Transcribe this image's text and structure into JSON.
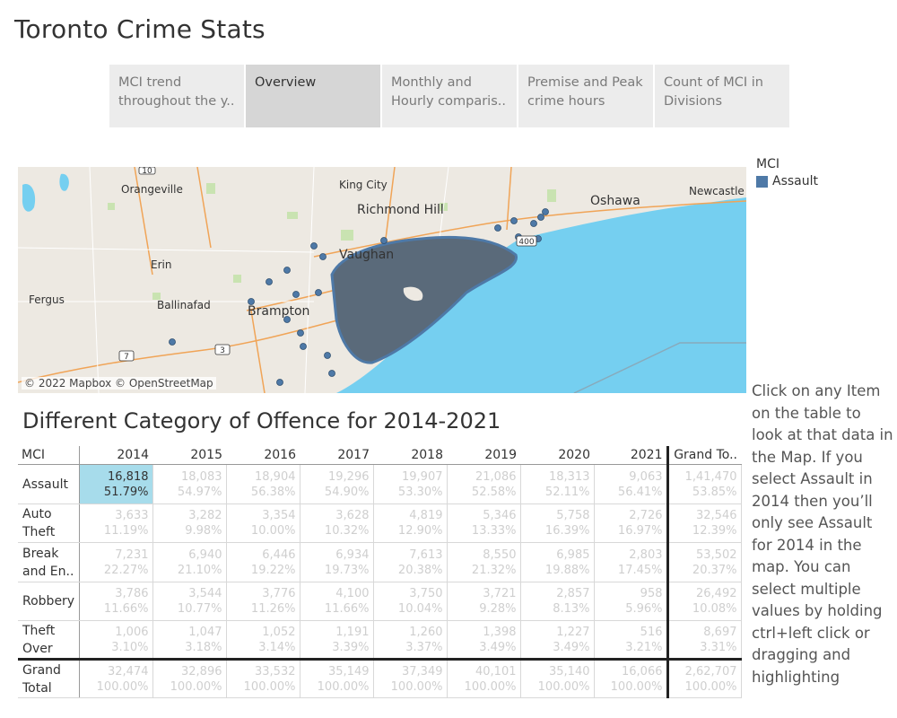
{
  "page": {
    "title": "Toronto Crime Stats"
  },
  "tabs": [
    {
      "label": "MCI trend throughout the y..",
      "active": false
    },
    {
      "label": "Overview",
      "active": true
    },
    {
      "label": "Monthly and Hourly comparis..",
      "active": false
    },
    {
      "label": "Premise and Peak crime hours",
      "active": false
    },
    {
      "label": "Count of MCI in Divisions",
      "active": false
    }
  ],
  "map": {
    "credit": "© 2022 Mapbox © OpenStreetMap",
    "places": [
      "Orangeville",
      "King City",
      "Richmond Hill",
      "Oshawa",
      "Newcastle",
      "Vaughan",
      "Erin",
      "Fergus",
      "Ballinafad",
      "Brampton"
    ],
    "shields": [
      "10",
      "7",
      "3",
      "400"
    ],
    "point_color": "#4e79a7",
    "water_color": "#75cff0",
    "land_color": "#ede9e2"
  },
  "legend": {
    "title": "MCI",
    "items": [
      {
        "label": "Assault",
        "color": "#4e79a7"
      }
    ]
  },
  "note": "Click on any Item on the table to look at that data in the Map. If you select Assault in 2014 then you’ll only see Assault for 2014 in the map. You can select multiple values by holding ctrl+left click or dragging and highlighting",
  "table": {
    "title": "Different Category of Offence for 2014-2021",
    "row_header": "MCI",
    "columns": [
      "2014",
      "2015",
      "2016",
      "2017",
      "2018",
      "2019",
      "2020",
      "2021",
      "Grand To.."
    ],
    "selected_color": "#a7dceb",
    "rows": [
      {
        "label": "Assault",
        "cells": [
          {
            "v": "16,818",
            "p": "51.79%"
          },
          {
            "v": "18,083",
            "p": "54.97%"
          },
          {
            "v": "18,904",
            "p": "56.38%"
          },
          {
            "v": "19,296",
            "p": "54.90%"
          },
          {
            "v": "19,907",
            "p": "53.30%"
          },
          {
            "v": "21,086",
            "p": "52.58%"
          },
          {
            "v": "18,313",
            "p": "52.11%"
          },
          {
            "v": "9,063",
            "p": "56.41%"
          },
          {
            "v": "1,41,470",
            "p": "53.85%"
          }
        ]
      },
      {
        "label": "Auto Theft",
        "cells": [
          {
            "v": "3,633",
            "p": "11.19%"
          },
          {
            "v": "3,282",
            "p": "9.98%"
          },
          {
            "v": "3,354",
            "p": "10.00%"
          },
          {
            "v": "3,628",
            "p": "10.32%"
          },
          {
            "v": "4,819",
            "p": "12.90%"
          },
          {
            "v": "5,346",
            "p": "13.33%"
          },
          {
            "v": "5,758",
            "p": "16.39%"
          },
          {
            "v": "2,726",
            "p": "16.97%"
          },
          {
            "v": "32,546",
            "p": "12.39%"
          }
        ]
      },
      {
        "label": "Break and En..",
        "cells": [
          {
            "v": "7,231",
            "p": "22.27%"
          },
          {
            "v": "6,940",
            "p": "21.10%"
          },
          {
            "v": "6,446",
            "p": "19.22%"
          },
          {
            "v": "6,934",
            "p": "19.73%"
          },
          {
            "v": "7,613",
            "p": "20.38%"
          },
          {
            "v": "8,550",
            "p": "21.32%"
          },
          {
            "v": "6,985",
            "p": "19.88%"
          },
          {
            "v": "2,803",
            "p": "17.45%"
          },
          {
            "v": "53,502",
            "p": "20.37%"
          }
        ]
      },
      {
        "label": "Robbery",
        "cells": [
          {
            "v": "3,786",
            "p": "11.66%"
          },
          {
            "v": "3,544",
            "p": "10.77%"
          },
          {
            "v": "3,776",
            "p": "11.26%"
          },
          {
            "v": "4,100",
            "p": "11.66%"
          },
          {
            "v": "3,750",
            "p": "10.04%"
          },
          {
            "v": "3,721",
            "p": "9.28%"
          },
          {
            "v": "2,857",
            "p": "8.13%"
          },
          {
            "v": "958",
            "p": "5.96%"
          },
          {
            "v": "26,492",
            "p": "10.08%"
          }
        ]
      },
      {
        "label": "Theft Over",
        "cells": [
          {
            "v": "1,006",
            "p": "3.10%"
          },
          {
            "v": "1,047",
            "p": "3.18%"
          },
          {
            "v": "1,052",
            "p": "3.14%"
          },
          {
            "v": "1,191",
            "p": "3.39%"
          },
          {
            "v": "1,260",
            "p": "3.37%"
          },
          {
            "v": "1,398",
            "p": "3.49%"
          },
          {
            "v": "1,227",
            "p": "3.49%"
          },
          {
            "v": "516",
            "p": "3.21%"
          },
          {
            "v": "8,697",
            "p": "3.31%"
          }
        ]
      }
    ],
    "total_row": {
      "label": "Grand Total",
      "cells": [
        {
          "v": "32,474",
          "p": "100.00%"
        },
        {
          "v": "32,896",
          "p": "100.00%"
        },
        {
          "v": "33,532",
          "p": "100.00%"
        },
        {
          "v": "35,149",
          "p": "100.00%"
        },
        {
          "v": "37,349",
          "p": "100.00%"
        },
        {
          "v": "40,101",
          "p": "100.00%"
        },
        {
          "v": "35,140",
          "p": "100.00%"
        },
        {
          "v": "16,066",
          "p": "100.00%"
        },
        {
          "v": "2,62,707",
          "p": "100.00%"
        }
      ]
    }
  }
}
